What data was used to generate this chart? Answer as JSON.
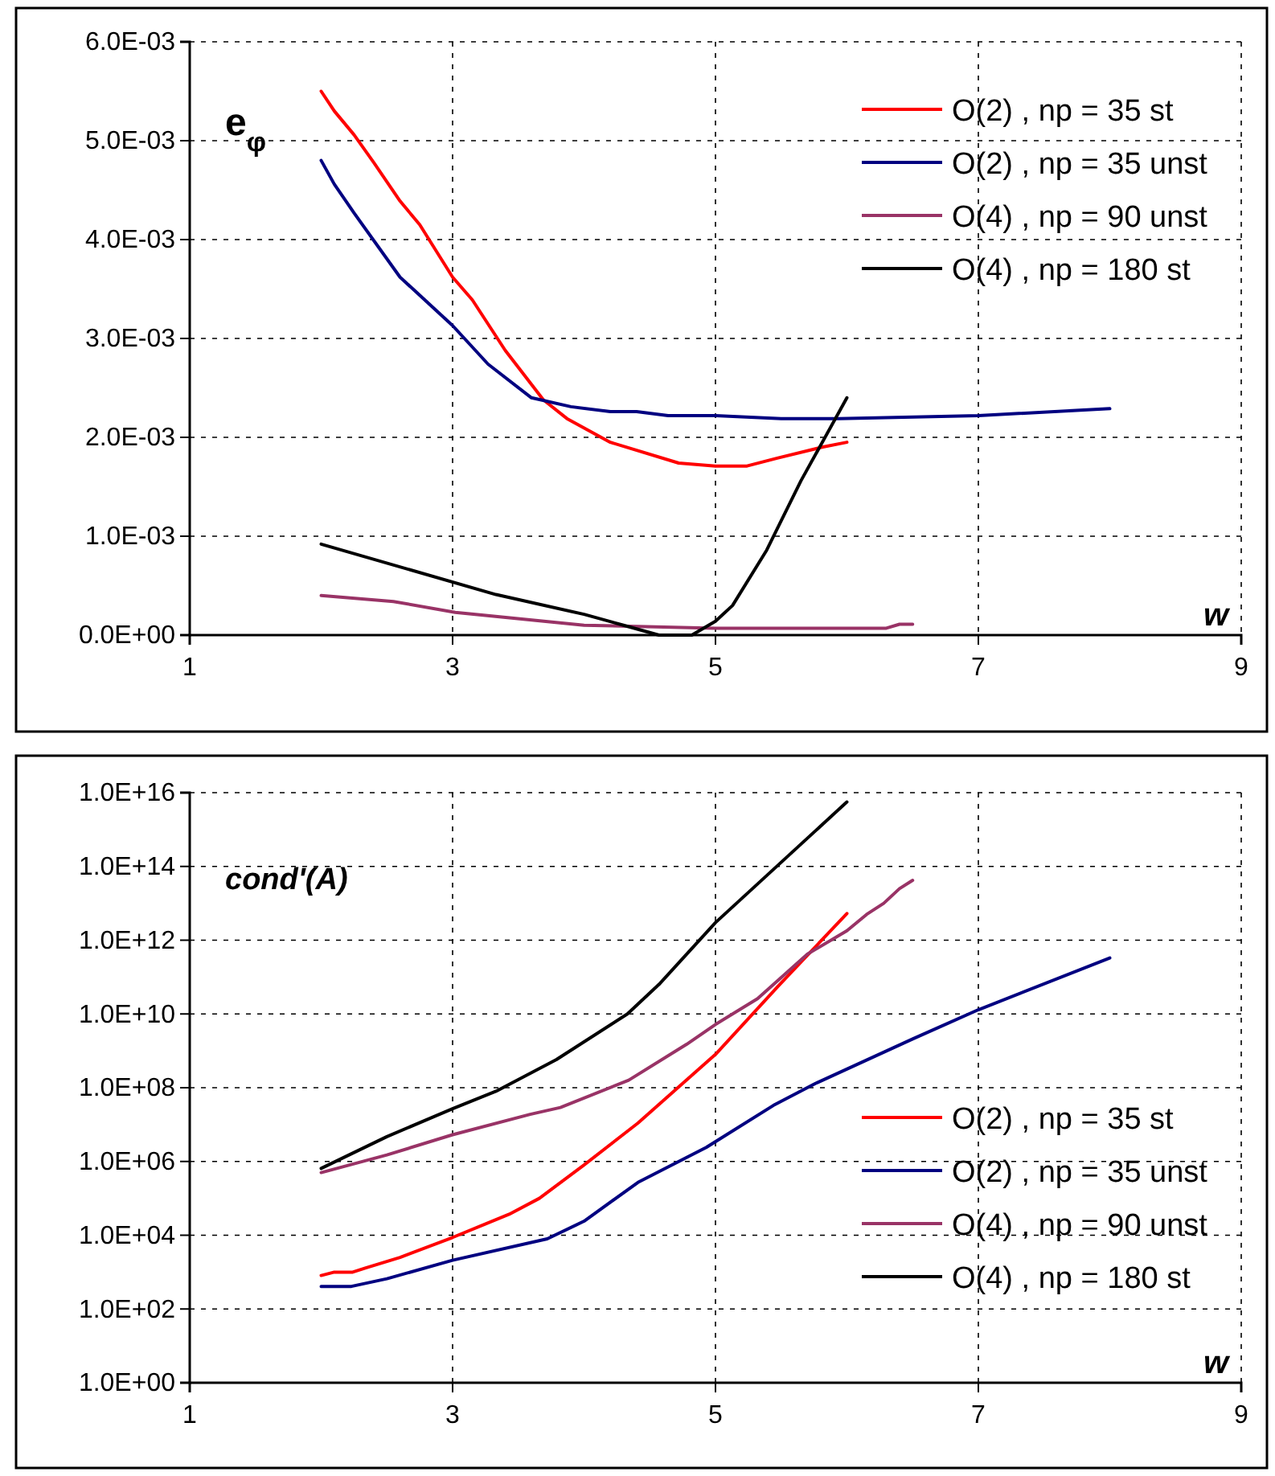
{
  "chart_data": [
    {
      "type": "line",
      "ylabel": "e$_{φ}$",
      "xlabel": "w",
      "xlim": [
        1,
        9
      ],
      "xticks": [
        1,
        3,
        5,
        7,
        9
      ],
      "ylim": [
        0,
        0.006
      ],
      "yticks": [
        {
          "value": 0,
          "label": "0.0E+00"
        },
        {
          "value": 0.001,
          "label": "1.0E-03"
        },
        {
          "value": 0.002,
          "label": "2.0E-03"
        },
        {
          "value": 0.003,
          "label": "3.0E-03"
        },
        {
          "value": 0.004,
          "label": "4.0E-03"
        },
        {
          "value": 0.005,
          "label": "5.0E-03"
        },
        {
          "value": 0.006,
          "label": "6.0E-03"
        }
      ],
      "grid": true,
      "legend": "top right",
      "line_style": "solid",
      "marker": "none",
      "series": [
        {
          "name": "O(2) , np = 35 st",
          "color": "#ff0000",
          "x": [
            2.0,
            2.1,
            2.25,
            2.4,
            2.6,
            2.75,
            3.0,
            3.15,
            3.4,
            3.69,
            3.87,
            4.2,
            4.72,
            5.0,
            5.24,
            5.47,
            5.81,
            6.0
          ],
          "values": [
            0.0055,
            0.0053,
            0.00506,
            0.00478,
            0.00439,
            0.00415,
            0.00362,
            0.00339,
            0.00288,
            0.00238,
            0.00219,
            0.00195,
            0.00174,
            0.00171,
            0.00171,
            0.00179,
            0.0019,
            0.00195
          ]
        },
        {
          "name": "O(2) , np = 35 unst",
          "color": "#000080",
          "x": [
            2.0,
            2.1,
            2.25,
            2.6,
            3.0,
            3.27,
            3.6,
            3.9,
            4.2,
            4.4,
            4.64,
            5.0,
            5.5,
            5.94,
            7.0,
            8.0
          ],
          "values": [
            0.0048,
            0.00456,
            0.00427,
            0.00362,
            0.00313,
            0.00274,
            0.0024,
            0.00231,
            0.00226,
            0.00226,
            0.00222,
            0.00222,
            0.00219,
            0.00219,
            0.00222,
            0.00229
          ]
        },
        {
          "name": "O(4) , np = 90 unst",
          "color": "#993366",
          "x": [
            2.0,
            2.55,
            3.02,
            4.0,
            5.0,
            6.3,
            6.4,
            6.5
          ],
          "values": [
            0.0004,
            0.00034,
            0.00023,
            0.0001,
            7e-05,
            7e-05,
            0.00011,
            0.00011
          ]
        },
        {
          "name": "O(4) , np = 180 st",
          "color": "#000000",
          "x": [
            2.0,
            3.33,
            4.0,
            4.3,
            4.57,
            4.82,
            5.0,
            5.13,
            5.39,
            5.65,
            6.0
          ],
          "values": [
            0.00092,
            0.00041,
            0.00021,
            0.0001,
            0,
            0,
            0.00014,
            0.0003,
            0.00086,
            0.00156,
            0.0024
          ]
        }
      ]
    },
    {
      "type": "line",
      "ylabel": "cond'(A)",
      "xlabel": "w",
      "xlim": [
        1,
        9
      ],
      "xticks": [
        1,
        3,
        5,
        7,
        9
      ],
      "ylim": [
        1,
        1e+16
      ],
      "log": true,
      "yticks": [
        {
          "value": 1,
          "label": "1.0E+00"
        },
        {
          "value": 100,
          "label": "1.0E+02"
        },
        {
          "value": 10000,
          "label": "1.0E+04"
        },
        {
          "value": 1000000,
          "label": "1.0E+06"
        },
        {
          "value": 100000000,
          "label": "1.0E+08"
        },
        {
          "value": 10000000000,
          "label": "1.0E+10"
        },
        {
          "value": 1000000000000,
          "label": "1.0E+12"
        },
        {
          "value": 100000000000000,
          "label": "1.0E+14"
        },
        {
          "value": 10000000000000000,
          "label": "1.0E+16"
        }
      ],
      "grid": true,
      "legend": "bottom right",
      "line_style": "solid",
      "marker": "none",
      "series": [
        {
          "name": "O(2) , np = 35 st",
          "color": "#ff0000",
          "x": [
            2.0,
            2.1,
            2.24,
            2.34,
            2.6,
            3.0,
            3.43,
            3.66,
            4.0,
            4.41,
            5.0,
            5.48,
            6.0
          ],
          "values": [
            810,
            1000,
            1000,
            1300,
            2500,
            8700,
            37000,
            100000,
            800000,
            11000000,
            800000000,
            58000000000,
            5300000000000
          ]
        },
        {
          "name": "O(2) , np = 35 unst",
          "color": "#000080",
          "x": [
            2.0,
            2.23,
            2.5,
            3.0,
            3.72,
            4.0,
            4.41,
            4.93,
            5.44,
            5.76,
            6.5,
            7.0,
            8.0
          ],
          "values": [
            410,
            410,
            660,
            2100,
            8000,
            24000,
            270000,
            2400000,
            33000000,
            130000000,
            2100000000,
            13000000000,
            330000000000
          ]
        },
        {
          "name": "O(4) , np = 90 unst",
          "color": "#993366",
          "x": [
            2.0,
            2.5,
            3.0,
            3.59,
            3.82,
            4.34,
            4.78,
            5.0,
            5.32,
            5.7,
            6.0,
            6.15,
            6.28,
            6.4,
            6.5
          ],
          "values": [
            500000,
            1500000,
            5300000,
            19000000,
            29000000,
            160000000,
            1500000000,
            5200000000,
            26000000000,
            420000000000,
            1800000000000,
            5000000000000,
            10000000000000,
            25000000000000,
            42000000000000
          ]
        },
        {
          "name": "O(4) , np = 180 st",
          "color": "#000000",
          "x": [
            2.0,
            2.5,
            3.0,
            3.33,
            3.79,
            4.33,
            4.57,
            5.0,
            6.0
          ],
          "values": [
            650000,
            4700000,
            27000000,
            80000000,
            580000000,
            10000000000,
            63000000000,
            3000000000000,
            5600000000000000
          ]
        }
      ]
    }
  ]
}
